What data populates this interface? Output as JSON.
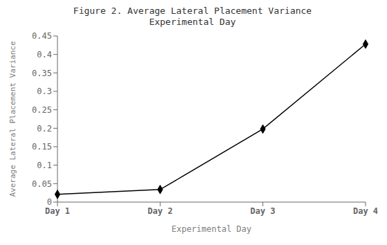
{
  "chart_data": {
    "type": "line",
    "title": "Figure 2.  Average Lateral Placement Variance",
    "subtitle": "Experimental Day",
    "x_label": "Experimental Day",
    "y_label": "Average Lateral Placement Variance",
    "categories": [
      "Day 1",
      "Day 2",
      "Day 3",
      "Day 4"
    ],
    "values": [
      0.021,
      0.034,
      0.198,
      0.428
    ],
    "color": "#000000",
    "marker": "diamond",
    "ylim": [
      0,
      0.45
    ],
    "yticks": [
      0,
      0.05,
      0.1,
      0.15,
      0.2,
      0.25,
      0.3,
      0.35,
      0.4,
      0.45
    ],
    "grid": false
  }
}
